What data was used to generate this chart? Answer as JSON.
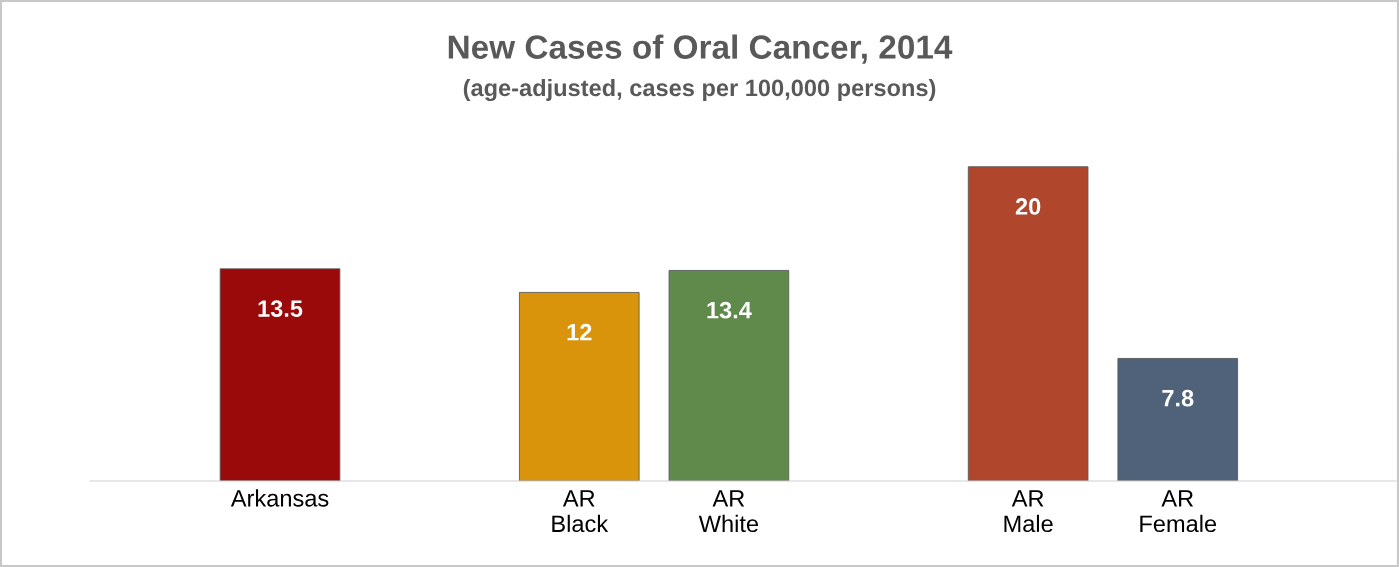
{
  "chart_data": {
    "type": "bar",
    "title": "New Cases of Oral Cancer, 2014",
    "subtitle": "(age-adjusted, cases per 100,000 persons)",
    "categories": [
      "Arkansas",
      null,
      "AR\nBlack",
      "AR\nWhite",
      null,
      "AR\nMale",
      "AR\nFemale"
    ],
    "values": [
      13.5,
      null,
      12,
      13.4,
      null,
      20,
      7.8
    ],
    "colors": [
      "#9b0a0a",
      null,
      "#d9940c",
      "#5f8a4c",
      null,
      "#b0472c",
      "#4f6279"
    ],
    "data_labels": true
  }
}
